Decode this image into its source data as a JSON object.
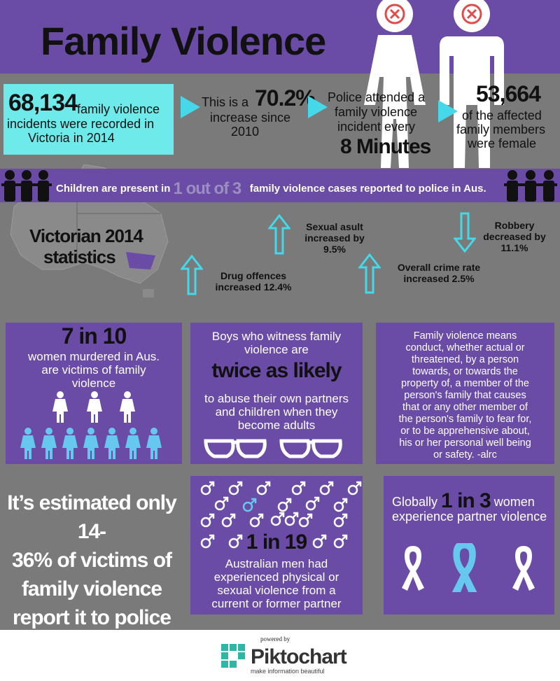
{
  "header": {
    "title": "Family Violence"
  },
  "stats": {
    "incidents_number": "68,134",
    "incidents_text_1": "family violence",
    "incidents_text_2": "incidents were recorded in",
    "incidents_text_3": "Victoria in 2014",
    "increase_prefix": "This is a",
    "increase_pct": "70.2%",
    "increase_text_1": "increase since",
    "increase_text_2": "2010",
    "police_text_1": "Police attended a",
    "police_text_2": "family violence",
    "police_text_3": "incident every",
    "police_minutes": "8 Minutes",
    "female_number": "53,664",
    "female_text_1": "of the affected",
    "female_text_2": "family members",
    "female_text_3": "were female"
  },
  "children": {
    "prefix": "Children are present in",
    "highlight": "1 out of 3",
    "suffix": "family violence cases reported to police in Aus."
  },
  "victorian": {
    "title_1": "Victorian 2014",
    "title_2": "statistics",
    "sexual_1": "Sexual asult",
    "sexual_2": "increased by",
    "sexual_3": "9.5%",
    "robbery_1": "Robbery",
    "robbery_2": "decreased by",
    "robbery_3": "11.1%",
    "drug_1": "Drug offences",
    "drug_2": "increased 12.4%",
    "overall_1": "Overall crime rate",
    "overall_2": "increased 2.5%"
  },
  "panels": {
    "women": {
      "big": "7 in 10",
      "text_1": "women murdered in Aus.",
      "text_2": "are victims of family",
      "text_3": "violence"
    },
    "boys": {
      "text_1": "Boys who witness family",
      "text_2": "violence are",
      "big": "twice as likely",
      "text_3": "to abuse their own partners",
      "text_4": "and children when they",
      "text_5": "become adults"
    },
    "definition": {
      "lines": [
        "Family violence means",
        "conduct, whether actual or",
        "threatened, by a person",
        "towards, or towards the",
        "property of, a member of the",
        "person's family that causes",
        "that or any other member of",
        "the person's family to fear for,",
        "or to be apprehensive about,",
        "his or her personal well being",
        "or safety. -alrc"
      ]
    },
    "estimate": {
      "line_1": "It’s estimated only 14-",
      "line_2": "36% of victims of",
      "line_3": "family violence",
      "line_4": "report it to police"
    },
    "men": {
      "big": "1 in 19",
      "text_1": "Australian men had",
      "text_2": "experienced physical or",
      "text_3": "sexual violence from a",
      "text_4": "current or former partner"
    },
    "global": {
      "prefix": "Globally",
      "big": "1 in 3",
      "suffix": "women",
      "text_2": "experience partner violence"
    }
  },
  "footer": {
    "powered": "powered by",
    "brand": "Piktochart",
    "tagline": "make information beautiful"
  },
  "colors": {
    "purple": "#6a4ba6",
    "cyan": "#44d8e8",
    "gray": "#7a7a7a"
  }
}
